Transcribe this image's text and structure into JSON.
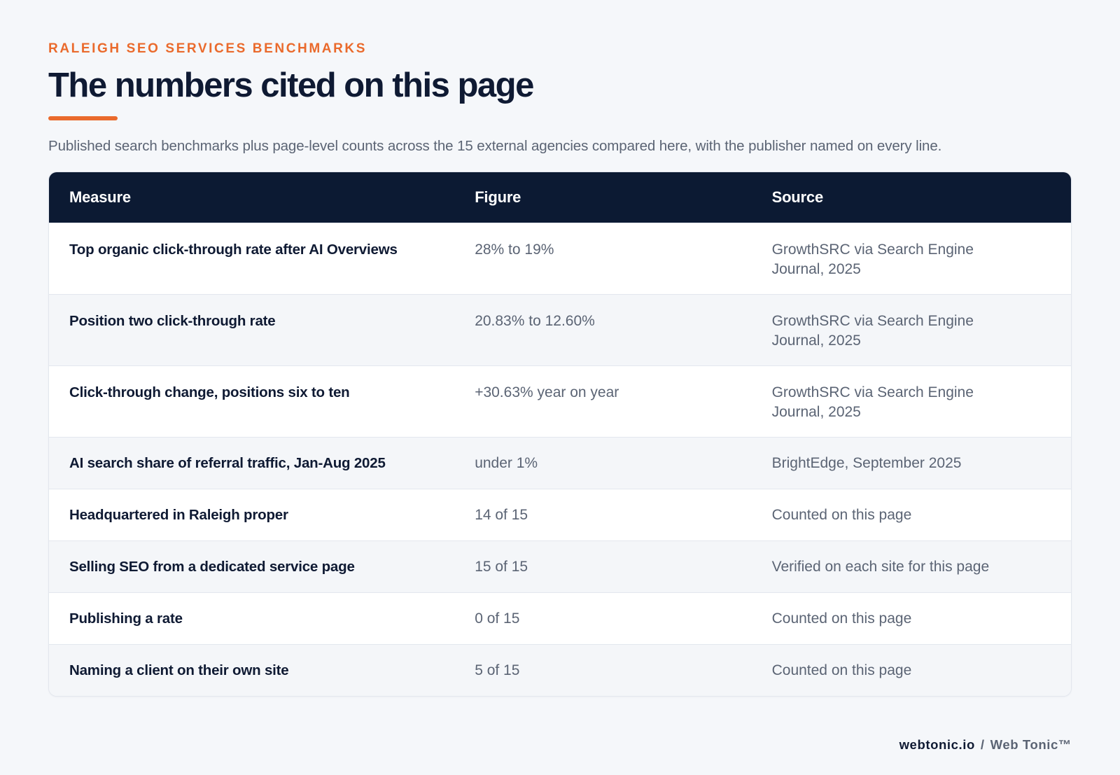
{
  "header": {
    "eyebrow": "RALEIGH SEO SERVICES BENCHMARKS",
    "title": "The numbers cited on this page",
    "subtitle": "Published search benchmarks plus page-level counts across the 15 external agencies compared here, with the publisher named on every line."
  },
  "table": {
    "columns": [
      "Measure",
      "Figure",
      "Source"
    ],
    "rows": [
      {
        "measure": "Top organic click-through rate after AI Overviews",
        "figure": "28% to 19%",
        "source_line1": "GrowthSRC via Search Engine",
        "source_line2": "Journal, 2025"
      },
      {
        "measure": "Position two click-through rate",
        "figure": "20.83% to 12.60%",
        "source_line1": "GrowthSRC via Search Engine",
        "source_line2": "Journal, 2025"
      },
      {
        "measure": "Click-through change, positions six to ten",
        "figure": "+30.63% year on year",
        "source_line1": "GrowthSRC via Search Engine",
        "source_line2": "Journal, 2025"
      },
      {
        "measure": "AI search share of referral traffic, Jan-Aug 2025",
        "figure": "under 1%",
        "source_line1": "BrightEdge, September 2025",
        "source_line2": ""
      },
      {
        "measure": "Headquartered in Raleigh proper",
        "figure": "14 of 15",
        "source_line1": "Counted on this page",
        "source_line2": ""
      },
      {
        "measure": "Selling SEO from a dedicated service page",
        "figure": "15 of 15",
        "source_line1": "Verified on each site for this page",
        "source_line2": ""
      },
      {
        "measure": "Publishing a rate",
        "figure": "0 of 15",
        "source_line1": "Counted on this page",
        "source_line2": ""
      },
      {
        "measure": "Naming a client on their own site",
        "figure": "5 of 15",
        "source_line1": "Counted on this page",
        "source_line2": ""
      }
    ]
  },
  "footer": {
    "domain": "webtonic.io",
    "separator": "/",
    "brand": "Web Tonic™"
  },
  "colors": {
    "accent": "#ea6a2c",
    "header_bg": "#0c1a33",
    "text_dark": "#0f1a33",
    "text_muted": "#5b6474"
  }
}
